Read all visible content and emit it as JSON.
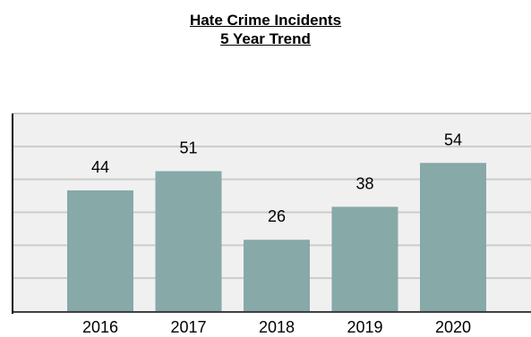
{
  "chart_data": {
    "type": "bar",
    "title": [
      "Hate Crime Incidents",
      "5 Year Trend"
    ],
    "categories": [
      "2016",
      "2017",
      "2018",
      "2019",
      "2020"
    ],
    "values": [
      44,
      51,
      26,
      38,
      54
    ],
    "data_labels": [
      "44",
      "51",
      "26",
      "38",
      "54"
    ],
    "xlabel": "",
    "ylabel": "",
    "ylim": [
      0,
      72
    ],
    "y_gridlines": [
      12,
      24,
      36,
      48,
      60,
      72
    ],
    "grid": true,
    "legend": "none",
    "bar_color": "#87a9a8",
    "plot_background": "#f0f0f0",
    "gridline_color": "#cccccc"
  }
}
